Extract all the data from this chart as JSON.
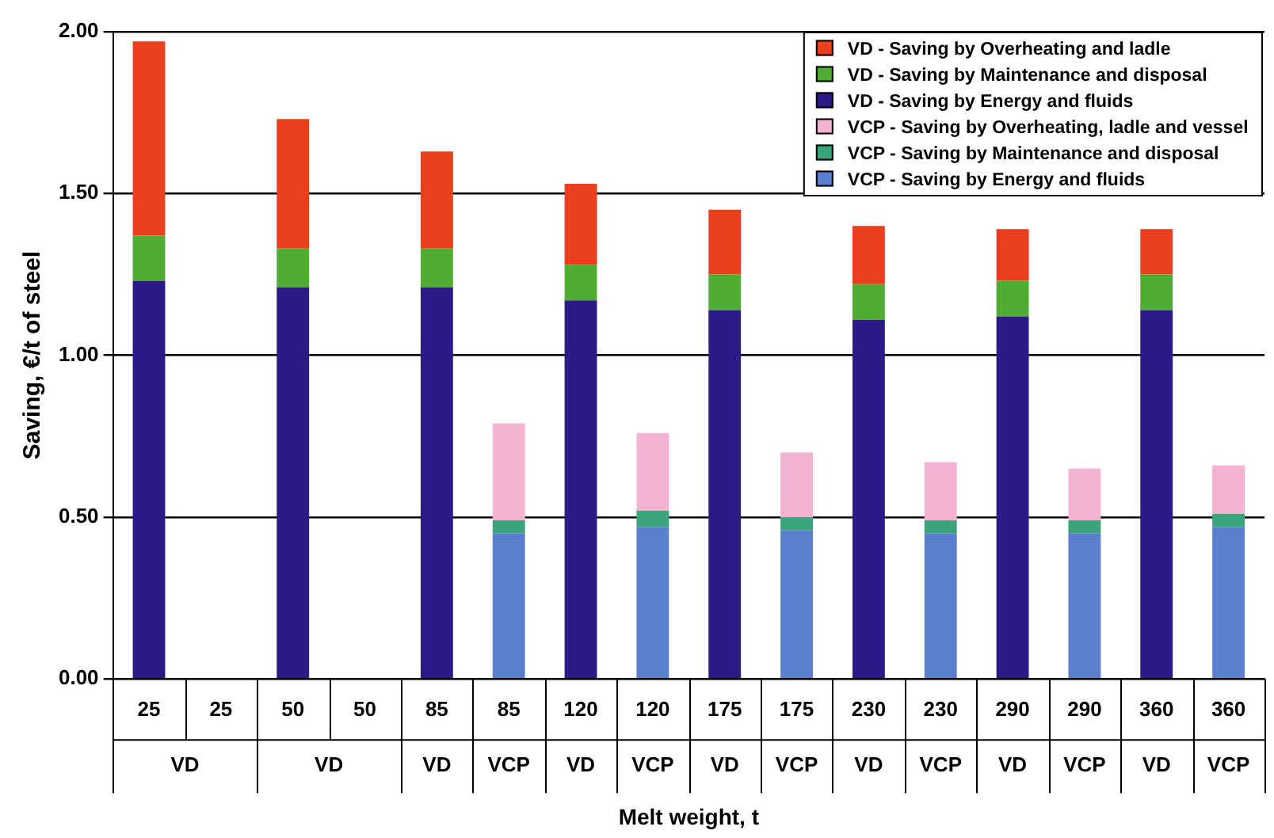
{
  "chart_data": {
    "type": "bar",
    "stacked": true,
    "xlabel": "Melt weight, t",
    "ylabel": "Saving, €/t of steel",
    "categories": [
      "25",
      "25",
      "50",
      "50",
      "85",
      "85",
      "120",
      "120",
      "175",
      "175",
      "230",
      "230",
      "290",
      "290",
      "360",
      "360"
    ],
    "annotations": [
      "VD",
      "VD",
      "VD",
      "VCP",
      "VD",
      "VCP",
      "VD",
      "VCP",
      "VD",
      "VCP",
      "VD",
      "VCP",
      "VD",
      "VCP"
    ],
    "ylim": [
      0,
      2
    ],
    "yticks": [
      {
        "value": 0,
        "label": "0.00"
      },
      {
        "value": 0.5,
        "label": "0.50"
      },
      {
        "value": 1,
        "label": "1.00"
      },
      {
        "value": 1.5,
        "label": "1.50"
      },
      {
        "value": 2,
        "label": "2.00"
      }
    ],
    "grid": "y",
    "legend": "top right",
    "series": [
      {
        "name": "VCP - Saving by Energy and fluids",
        "color": "#5b7fcf",
        "values": [
          null,
          null,
          null,
          null,
          null,
          0.45,
          null,
          0.47,
          null,
          0.46,
          null,
          0.45,
          null,
          0.45,
          null,
          0.47
        ]
      },
      {
        "name": "VCP - Saving by Maintenance and disposal",
        "color": "#3aa57a",
        "values": [
          null,
          null,
          null,
          null,
          null,
          0.04,
          null,
          0.05,
          null,
          0.04,
          null,
          0.04,
          null,
          0.04,
          null,
          0.04
        ]
      },
      {
        "name": "VCP - Saving by Overheating, ladle and vessel",
        "color": "#f4b3d0",
        "values": [
          null,
          null,
          null,
          null,
          null,
          0.3,
          null,
          0.24,
          null,
          0.2,
          null,
          0.18,
          null,
          0.16,
          null,
          0.15
        ]
      },
      {
        "name": "VD - Saving by Energy and fluids",
        "color": "#2e1a87",
        "values": [
          1.23,
          null,
          1.21,
          null,
          1.21,
          null,
          1.17,
          null,
          1.14,
          null,
          1.11,
          null,
          1.12,
          null,
          1.14,
          null
        ]
      },
      {
        "name": "VD - Saving by Maintenance and disposal",
        "color": "#4fae32",
        "values": [
          0.14,
          null,
          0.12,
          null,
          0.12,
          null,
          0.11,
          null,
          0.11,
          null,
          0.11,
          null,
          0.11,
          null,
          0.11,
          null
        ]
      },
      {
        "name": "VD - Saving by Overheating and ladle",
        "color": "#e8401c",
        "values": [
          0.6,
          null,
          0.4,
          null,
          0.3,
          null,
          0.25,
          null,
          0.2,
          null,
          0.18,
          null,
          0.16,
          null,
          0.14,
          null
        ]
      }
    ]
  }
}
